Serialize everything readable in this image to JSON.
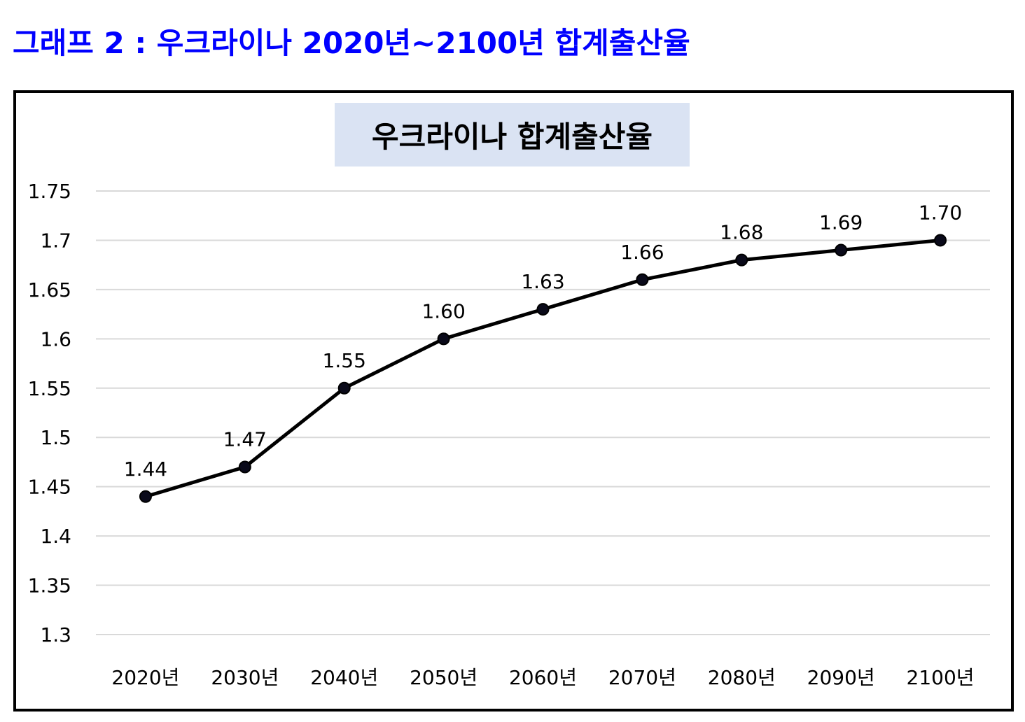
{
  "page_heading": "그래프 2 : 우크라이나 2020년~2100년 합계출산율",
  "colors": {
    "heading": "#0000ff",
    "title_bg": "#dae3f3",
    "line": "#000000",
    "grid": "#d9d9d9"
  },
  "chart_data": {
    "type": "line",
    "title": "우크라이나 합계출산율",
    "xlabel": "",
    "ylabel": "",
    "categories": [
      "2020년",
      "2030년",
      "2040년",
      "2050년",
      "2060년",
      "2070년",
      "2080년",
      "2090년",
      "2100년"
    ],
    "series": [
      {
        "values": [
          1.44,
          1.47,
          1.55,
          1.6,
          1.63,
          1.66,
          1.68,
          1.69,
          1.7
        ],
        "labels": [
          "1.44",
          "1.47",
          "1.55",
          "1.60",
          "1.63",
          "1.66",
          "1.68",
          "1.69",
          "1.70"
        ]
      }
    ],
    "ylim": [
      1.3,
      1.75
    ],
    "yticks": [
      "1.3",
      "1.35",
      "1.4",
      "1.45",
      "1.5",
      "1.55",
      "1.6",
      "1.65",
      "1.7",
      "1.75"
    ],
    "grid": true,
    "legend": "none"
  }
}
